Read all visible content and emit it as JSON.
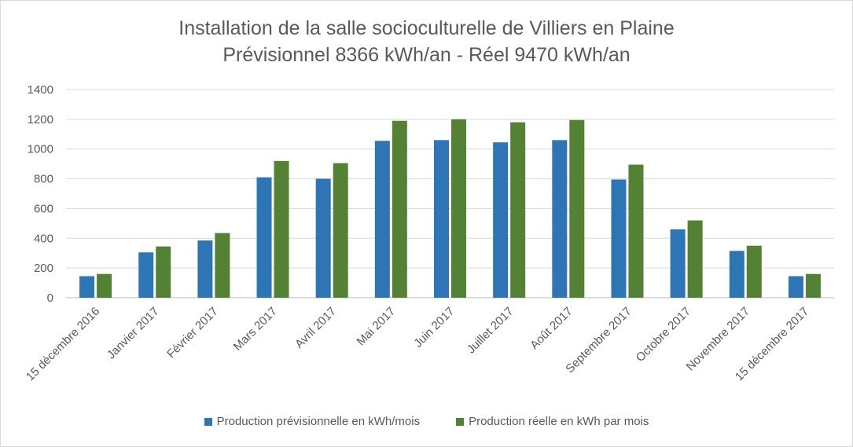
{
  "chart_data": {
    "type": "bar",
    "title": "Installation de la salle socioculturelle de Villiers en Plaine",
    "subtitle": "Prévisionnel 8366 kWh/an - Réel 9470 kWh/an",
    "categories": [
      "15 décembre 2016",
      "Janvier 2017",
      "Février 2017",
      "Mars 2017",
      "Avril 2017",
      "Mai 2017",
      "Juin 2017",
      "Juillet 2017",
      "Août 2017",
      "Septembre 2017",
      "Octobre 2017",
      "Novembre 2017",
      "15 décembre 2017"
    ],
    "series": [
      {
        "name": "Production prévisionnelle en kWh/mois",
        "color": "#2e75b6",
        "values": [
          145,
          305,
          385,
          810,
          800,
          1055,
          1060,
          1045,
          1060,
          795,
          460,
          315,
          145
        ]
      },
      {
        "name": "Production réelle en kWh par mois",
        "color": "#548235",
        "values": [
          160,
          345,
          435,
          920,
          905,
          1190,
          1200,
          1180,
          1195,
          895,
          520,
          350,
          160
        ]
      }
    ],
    "ylim": [
      0,
      1400
    ],
    "yticks": [
      0,
      200,
      400,
      600,
      800,
      1000,
      1200,
      1400
    ],
    "grid": true,
    "legend_position": "bottom",
    "xlabel": "",
    "ylabel": ""
  }
}
